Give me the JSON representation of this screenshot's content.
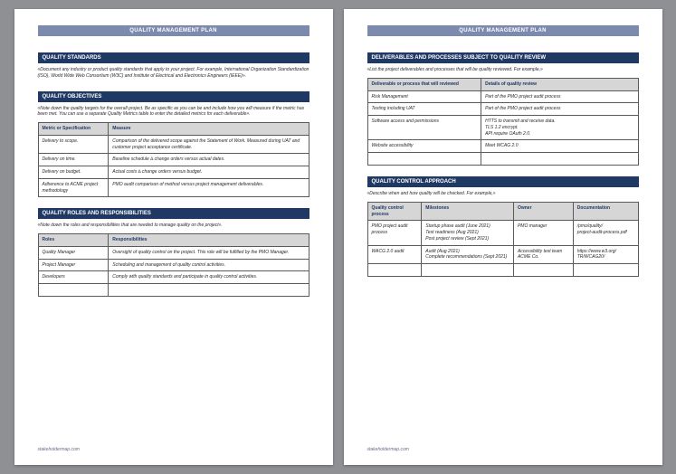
{
  "doc_title": "QUALITY MANAGEMENT PLAN",
  "footer": "stakeholdermap.com",
  "page1": {
    "standards": {
      "heading": "QUALITY STANDARDS",
      "instr": "«Document any industry or product quality standards that apply to your project. For example, International Organization Standardization (ISO), World Wide Web Consortium (W3C) and Institute of Electrical and Electronics Engineers (IEEE)»."
    },
    "objectives": {
      "heading": "QUALITY OBJECTIVES",
      "instr": "«Note down the quality targets for the overall project. Be as specific as you can be and include how you will measure if the metric has been met. You can use a separate Quality Metrics table to enter the detailed metrics for each deliverable».",
      "th1": "Metric or Specification",
      "th2": "Measure",
      "rows": [
        {
          "m": "Delivery to scope.",
          "v": "Comparison of the delivered scope against the Statement of Work. Measured during UAT and customer project acceptance certificate."
        },
        {
          "m": "Delivery on time.",
          "v": "Baseline schedule ∆ change orders versus actual dates."
        },
        {
          "m": "Delivery on budget.",
          "v": "Actual costs ∆ change orders versus budget."
        },
        {
          "m": "Adherence to ACME project methodology",
          "v": "PMO audit comparison of method versus project management deliverables."
        }
      ]
    },
    "roles": {
      "heading": "QUALITY ROLES AND RESPONSIBILITIES",
      "instr": "«Note down the roles and responsibilities that are needed to manage quality on the project».",
      "th1": "Roles",
      "th2": "Responsibilities",
      "rows": [
        {
          "m": "Quality Manager",
          "v": "Oversight of quality control on the project. This role will be fulfilled by the PMO Manager."
        },
        {
          "m": "Project Manager",
          "v": "Scheduling and management of quality control activities."
        },
        {
          "m": "Developers",
          "v": "Comply with quality standards and participate in quality control activities."
        }
      ]
    }
  },
  "page2": {
    "deliverables": {
      "heading": "DELIVERABLES AND PROCESSES SUBJECT TO QUALITY REVIEW",
      "instr": "«List the project deliverables and processes that will be quality reviewed. For example,»",
      "th1": "Deliverable or process that will reviewed",
      "th2": "Details of quality review",
      "rows": [
        {
          "m": "Risk Management",
          "v": "Part of the PMO project audit process"
        },
        {
          "m": "Testing including UAT",
          "v": "Part of the PMO project audit process"
        },
        {
          "m": "Software access and permissions",
          "v": "HTTS to transmit and receive data.\nTLS 1.2 encrypt.\nAPI require OAuth 2.0."
        },
        {
          "m": "Website accessibility",
          "v": "Meet WCAG 2.0"
        }
      ]
    },
    "control": {
      "heading": "QUALITY CONTROL APPROACH",
      "instr": "«Describe when and how quality will be checked. For example,»",
      "th1": "Quality control process",
      "th2": "Milestones",
      "th3": "Owner",
      "th4": "Documentation",
      "rows": [
        {
          "p": "PMO project audit process",
          "m": "Startup phase audit (June 2021)\nTest readiness (Aug 2021)\nPost project review (Sept 2021)",
          "o": "PMO manager",
          "d": "/pmo/quality/\nproject-audit-process.pdf"
        },
        {
          "p": "WACG 2.0 audit",
          "m": "Audit (Aug 2021)\nComplete recommendations (Sept 2021)",
          "o": "Accessibility test team ACME Co.",
          "d": "https://www.w3.org/\nTR/WCAG20/"
        }
      ]
    }
  }
}
